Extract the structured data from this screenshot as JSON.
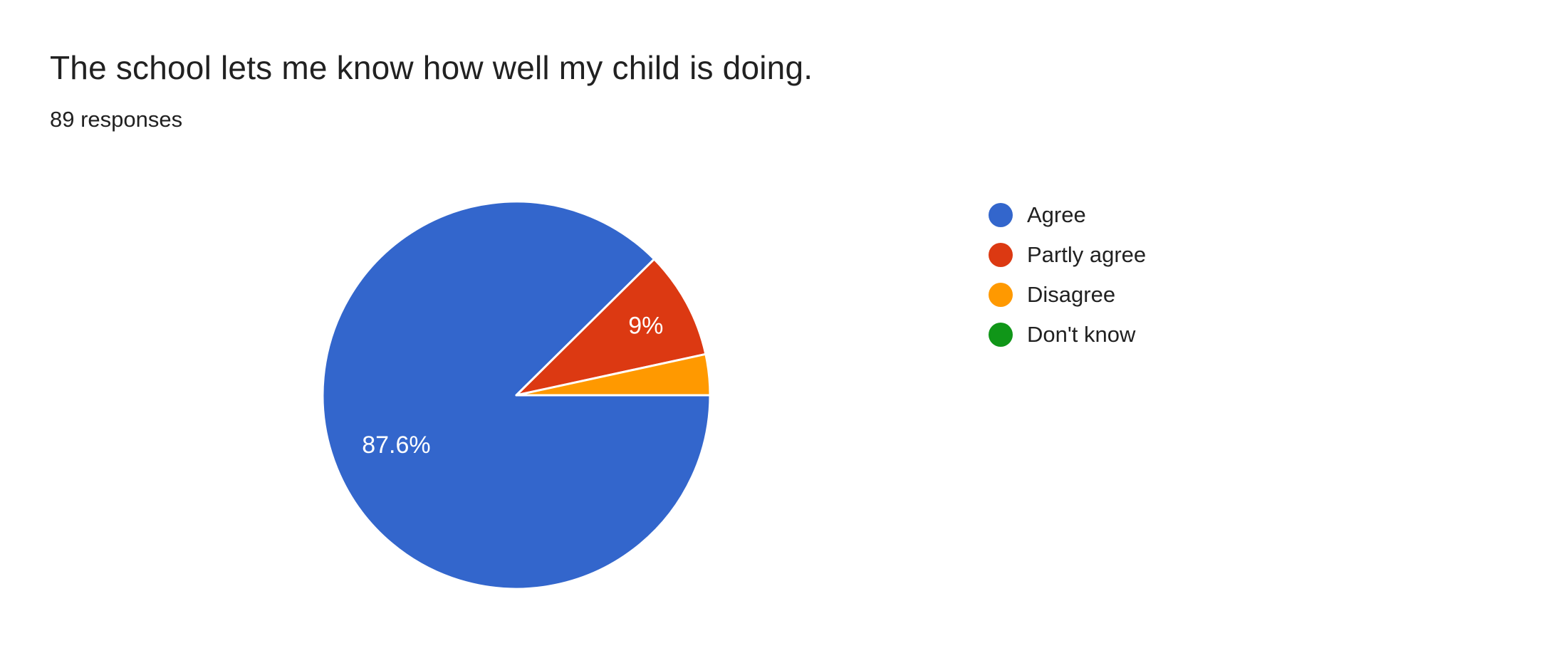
{
  "chart_data": {
    "type": "pie",
    "title": "The school lets me know how well my child is doing.",
    "subtitle": "89 responses",
    "total_responses": 89,
    "categories": [
      "Agree",
      "Partly agree",
      "Disagree",
      "Don't know"
    ],
    "values_percent": [
      87.6,
      9,
      3.4,
      0
    ],
    "slice_labels": [
      "87.6%",
      "9%",
      "",
      ""
    ],
    "colors": [
      "#3366CC",
      "#DC3912",
      "#FF9900",
      "#109618"
    ],
    "label_color": "#FFFFFF",
    "legend_position": "right",
    "start_angle": "east",
    "direction": "clockwise",
    "grid": "off"
  }
}
